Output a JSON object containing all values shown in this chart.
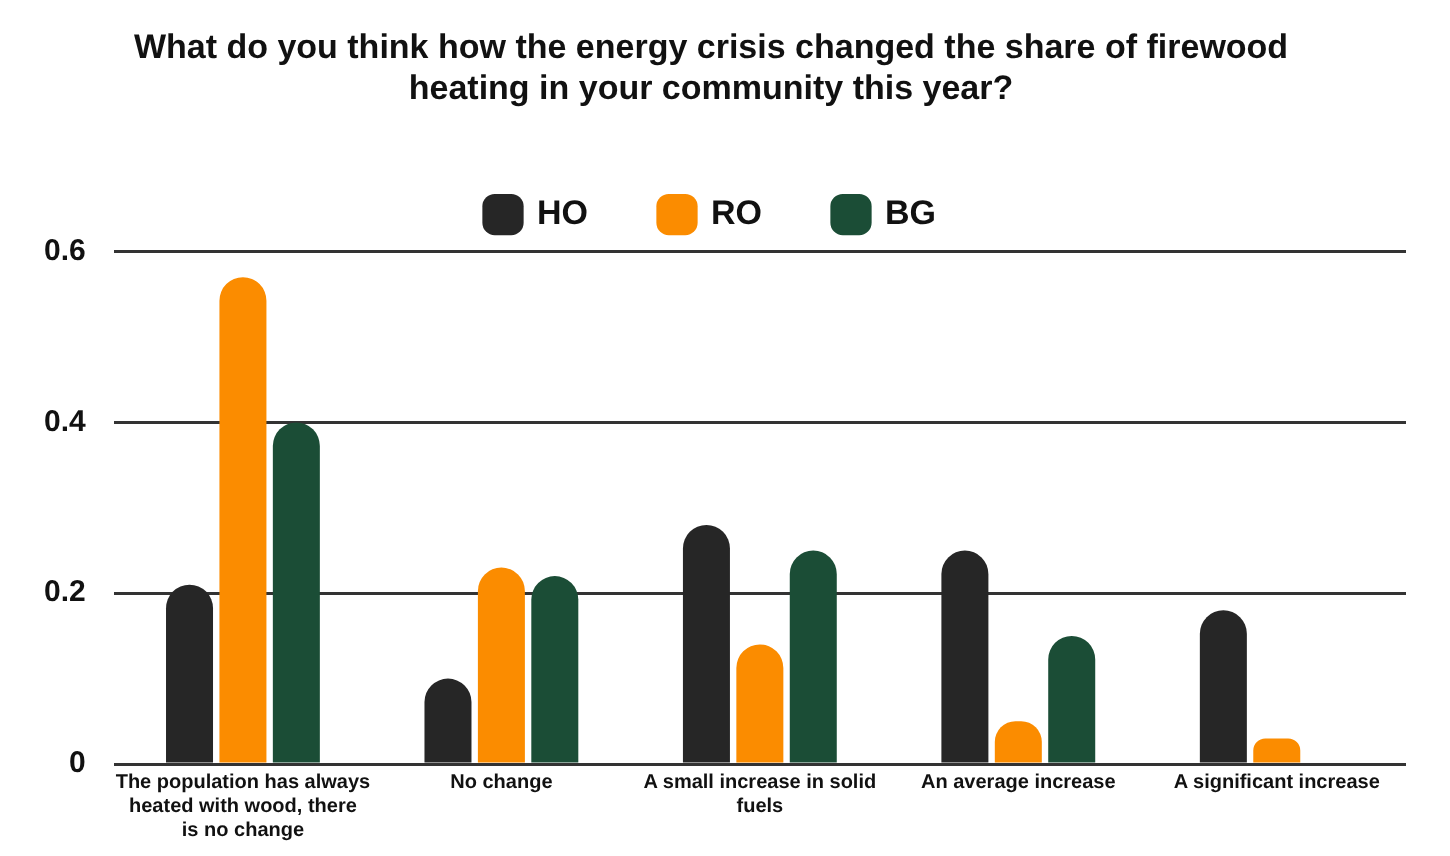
{
  "chart_data": {
    "type": "bar",
    "title": "What do you think how the energy crisis changed the share of firewood heating in your community this year?",
    "categories": [
      "The population has always heated with wood, there is no change",
      "No change",
      "A small increase in solid fuels",
      "An average increase",
      "A significant increase"
    ],
    "series": [
      {
        "name": "HO",
        "color": "#262626",
        "values": [
          0.21,
          0.1,
          0.28,
          0.25,
          0.18
        ]
      },
      {
        "name": "RO",
        "color": "#fb8c00",
        "values": [
          0.57,
          0.23,
          0.14,
          0.05,
          0.03
        ]
      },
      {
        "name": "BG",
        "color": "#1b4d36",
        "values": [
          0.4,
          0.22,
          0.25,
          0.15,
          0
        ]
      }
    ],
    "ylim": [
      0,
      0.6
    ],
    "yticks": [
      0,
      0.2,
      0.4,
      0.6
    ],
    "grid": "y",
    "legend": "top"
  }
}
